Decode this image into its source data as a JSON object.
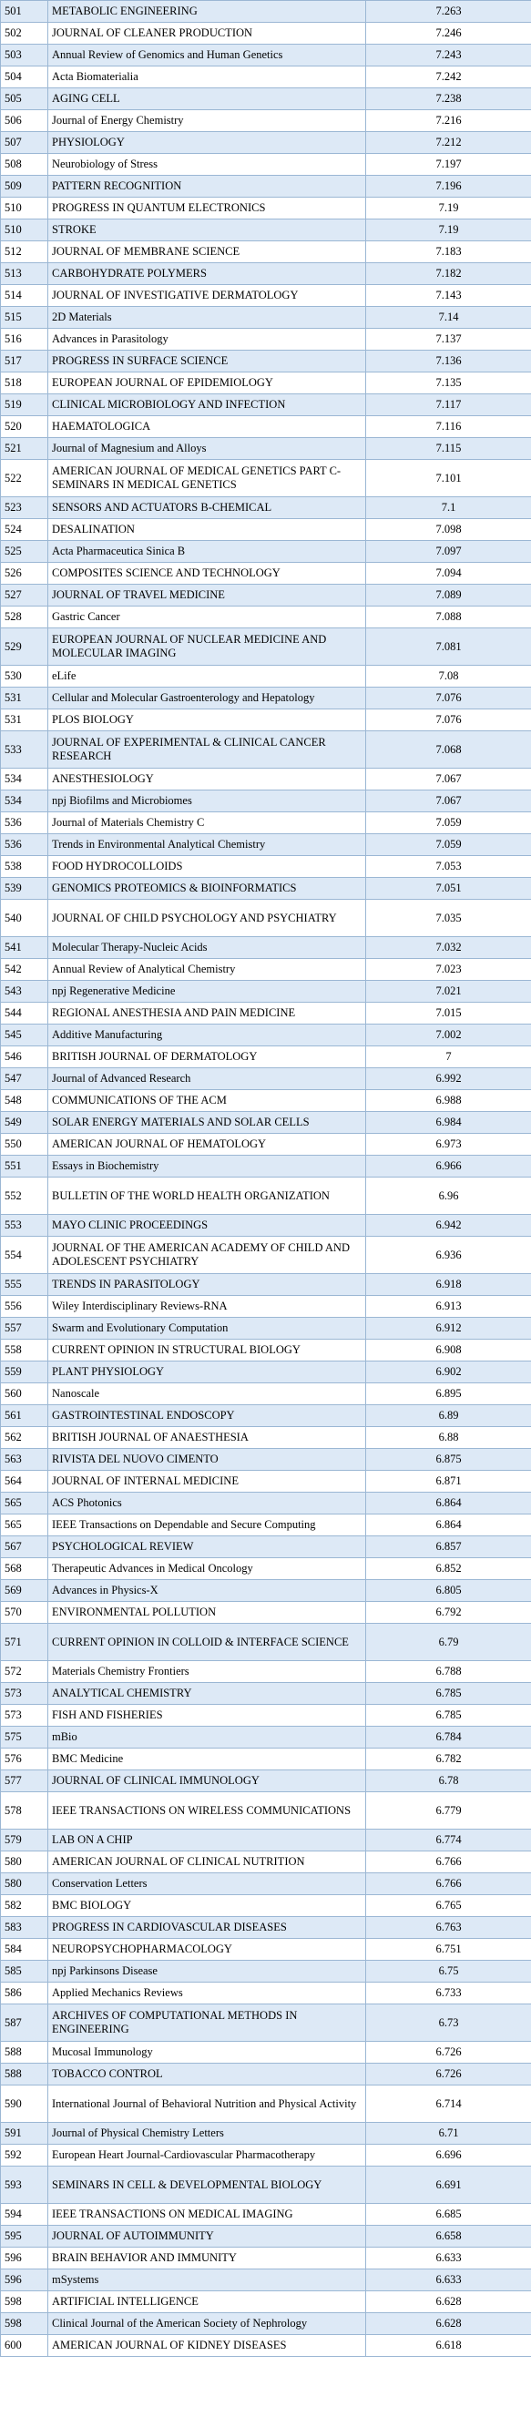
{
  "table": {
    "rows": [
      {
        "rank": "501",
        "name": "METABOLIC ENGINEERING",
        "value": "7.263",
        "shaded": true,
        "lines": 1
      },
      {
        "rank": "502",
        "name": "JOURNAL OF CLEANER PRODUCTION",
        "value": "7.246",
        "shaded": false,
        "lines": 1
      },
      {
        "rank": "503",
        "name": "Annual Review of Genomics and Human Genetics",
        "value": "7.243",
        "shaded": true,
        "lines": 1
      },
      {
        "rank": "504",
        "name": "Acta Biomaterialia",
        "value": "7.242",
        "shaded": false,
        "lines": 1
      },
      {
        "rank": "505",
        "name": "AGING CELL",
        "value": "7.238",
        "shaded": true,
        "lines": 1
      },
      {
        "rank": "506",
        "name": "Journal of Energy Chemistry",
        "value": "7.216",
        "shaded": false,
        "lines": 1
      },
      {
        "rank": "507",
        "name": "PHYSIOLOGY",
        "value": "7.212",
        "shaded": true,
        "lines": 1
      },
      {
        "rank": "508",
        "name": "Neurobiology of Stress",
        "value": "7.197",
        "shaded": false,
        "lines": 1
      },
      {
        "rank": "509",
        "name": "PATTERN RECOGNITION",
        "value": "7.196",
        "shaded": true,
        "lines": 1
      },
      {
        "rank": "510",
        "name": "PROGRESS IN QUANTUM ELECTRONICS",
        "value": "7.19",
        "shaded": false,
        "lines": 1
      },
      {
        "rank": "510",
        "name": "STROKE",
        "value": "7.19",
        "shaded": true,
        "lines": 1
      },
      {
        "rank": "512",
        "name": "JOURNAL OF MEMBRANE SCIENCE",
        "value": "7.183",
        "shaded": false,
        "lines": 1
      },
      {
        "rank": "513",
        "name": "CARBOHYDRATE POLYMERS",
        "value": "7.182",
        "shaded": true,
        "lines": 1
      },
      {
        "rank": "514",
        "name": "JOURNAL OF INVESTIGATIVE DERMATOLOGY",
        "value": "7.143",
        "shaded": false,
        "lines": 1
      },
      {
        "rank": "515",
        "name": "2D Materials",
        "value": "7.14",
        "shaded": true,
        "lines": 1
      },
      {
        "rank": "516",
        "name": "Advances in Parasitology",
        "value": "7.137",
        "shaded": false,
        "lines": 1
      },
      {
        "rank": "517",
        "name": "PROGRESS IN SURFACE SCIENCE",
        "value": "7.136",
        "shaded": true,
        "lines": 1
      },
      {
        "rank": "518",
        "name": "EUROPEAN JOURNAL OF EPIDEMIOLOGY",
        "value": "7.135",
        "shaded": false,
        "lines": 1
      },
      {
        "rank": "519",
        "name": "CLINICAL MICROBIOLOGY AND INFECTION",
        "value": "7.117",
        "shaded": true,
        "lines": 1
      },
      {
        "rank": "520",
        "name": "HAEMATOLOGICA",
        "value": "7.116",
        "shaded": false,
        "lines": 1
      },
      {
        "rank": "521",
        "name": "Journal of Magnesium and Alloys",
        "value": "7.115",
        "shaded": true,
        "lines": 1
      },
      {
        "rank": "522",
        "name": "AMERICAN JOURNAL OF MEDICAL GENETICS PART C-SEMINARS IN MEDICAL GENETICS",
        "value": "7.101",
        "shaded": false,
        "lines": 2
      },
      {
        "rank": "523",
        "name": "SENSORS AND ACTUATORS B-CHEMICAL",
        "value": "7.1",
        "shaded": true,
        "lines": 1
      },
      {
        "rank": "524",
        "name": "DESALINATION",
        "value": "7.098",
        "shaded": false,
        "lines": 1
      },
      {
        "rank": "525",
        "name": "Acta Pharmaceutica Sinica B",
        "value": "7.097",
        "shaded": true,
        "lines": 1
      },
      {
        "rank": "526",
        "name": "COMPOSITES SCIENCE AND TECHNOLOGY",
        "value": "7.094",
        "shaded": false,
        "lines": 1
      },
      {
        "rank": "527",
        "name": "JOURNAL OF TRAVEL MEDICINE",
        "value": "7.089",
        "shaded": true,
        "lines": 1
      },
      {
        "rank": "528",
        "name": "Gastric Cancer",
        "value": "7.088",
        "shaded": false,
        "lines": 1
      },
      {
        "rank": "529",
        "name": "EUROPEAN JOURNAL OF NUCLEAR MEDICINE AND MOLECULAR IMAGING",
        "value": "7.081",
        "shaded": true,
        "lines": 2
      },
      {
        "rank": "530",
        "name": "eLife",
        "value": "7.08",
        "shaded": false,
        "lines": 1
      },
      {
        "rank": "531",
        "name": "Cellular and Molecular Gastroenterology and Hepatology",
        "value": "7.076",
        "shaded": true,
        "lines": 1
      },
      {
        "rank": "531",
        "name": "PLOS BIOLOGY",
        "value": "7.076",
        "shaded": false,
        "lines": 1
      },
      {
        "rank": "533",
        "name": "JOURNAL OF EXPERIMENTAL & CLINICAL CANCER RESEARCH",
        "value": "7.068",
        "shaded": true,
        "lines": 2
      },
      {
        "rank": "534",
        "name": "ANESTHESIOLOGY",
        "value": "7.067",
        "shaded": false,
        "lines": 1
      },
      {
        "rank": "534",
        "name": "npj Biofilms and Microbiomes",
        "value": "7.067",
        "shaded": true,
        "lines": 1
      },
      {
        "rank": "536",
        "name": "Journal of Materials Chemistry C",
        "value": "7.059",
        "shaded": false,
        "lines": 1
      },
      {
        "rank": "536",
        "name": "Trends in Environmental Analytical Chemistry",
        "value": "7.059",
        "shaded": true,
        "lines": 1
      },
      {
        "rank": "538",
        "name": "FOOD HYDROCOLLOIDS",
        "value": "7.053",
        "shaded": false,
        "lines": 1
      },
      {
        "rank": "539",
        "name": "GENOMICS PROTEOMICS & BIOINFORMATICS",
        "value": "7.051",
        "shaded": true,
        "lines": 1
      },
      {
        "rank": "540",
        "name": "JOURNAL OF CHILD PSYCHOLOGY AND PSYCHIATRY",
        "value": "7.035",
        "shaded": false,
        "lines": 2
      },
      {
        "rank": "541",
        "name": "Molecular Therapy-Nucleic Acids",
        "value": "7.032",
        "shaded": true,
        "lines": 1
      },
      {
        "rank": "542",
        "name": "Annual Review of Analytical Chemistry",
        "value": "7.023",
        "shaded": false,
        "lines": 1
      },
      {
        "rank": "543",
        "name": "npj Regenerative Medicine",
        "value": "7.021",
        "shaded": true,
        "lines": 1
      },
      {
        "rank": "544",
        "name": "REGIONAL ANESTHESIA AND PAIN MEDICINE",
        "value": "7.015",
        "shaded": false,
        "lines": 1
      },
      {
        "rank": "545",
        "name": "Additive Manufacturing",
        "value": "7.002",
        "shaded": true,
        "lines": 1
      },
      {
        "rank": "546",
        "name": "BRITISH JOURNAL OF DERMATOLOGY",
        "value": "7",
        "shaded": false,
        "lines": 1
      },
      {
        "rank": "547",
        "name": "Journal of Advanced Research",
        "value": "6.992",
        "shaded": true,
        "lines": 1
      },
      {
        "rank": "548",
        "name": "COMMUNICATIONS OF THE ACM",
        "value": "6.988",
        "shaded": false,
        "lines": 1
      },
      {
        "rank": "549",
        "name": "SOLAR ENERGY MATERIALS AND SOLAR CELLS",
        "value": "6.984",
        "shaded": true,
        "lines": 1
      },
      {
        "rank": "550",
        "name": "AMERICAN JOURNAL OF HEMATOLOGY",
        "value": "6.973",
        "shaded": false,
        "lines": 1
      },
      {
        "rank": "551",
        "name": "Essays in Biochemistry",
        "value": "6.966",
        "shaded": true,
        "lines": 1
      },
      {
        "rank": "552",
        "name": "BULLETIN OF THE WORLD HEALTH ORGANIZATION",
        "value": "6.96",
        "shaded": false,
        "lines": 2
      },
      {
        "rank": "553",
        "name": "MAYO CLINIC PROCEEDINGS",
        "value": "6.942",
        "shaded": true,
        "lines": 1
      },
      {
        "rank": "554",
        "name": "JOURNAL OF THE AMERICAN ACADEMY OF CHILD AND ADOLESCENT PSYCHIATRY",
        "value": "6.936",
        "shaded": false,
        "lines": 2
      },
      {
        "rank": "555",
        "name": "TRENDS IN PARASITOLOGY",
        "value": "6.918",
        "shaded": true,
        "lines": 1
      },
      {
        "rank": "556",
        "name": "Wiley Interdisciplinary Reviews-RNA",
        "value": "6.913",
        "shaded": false,
        "lines": 1
      },
      {
        "rank": "557",
        "name": "Swarm and Evolutionary Computation",
        "value": "6.912",
        "shaded": true,
        "lines": 1
      },
      {
        "rank": "558",
        "name": "CURRENT OPINION IN STRUCTURAL BIOLOGY",
        "value": "6.908",
        "shaded": false,
        "lines": 1
      },
      {
        "rank": "559",
        "name": "PLANT PHYSIOLOGY",
        "value": "6.902",
        "shaded": true,
        "lines": 1
      },
      {
        "rank": "560",
        "name": "Nanoscale",
        "value": "6.895",
        "shaded": false,
        "lines": 1
      },
      {
        "rank": "561",
        "name": "GASTROINTESTINAL ENDOSCOPY",
        "value": "6.89",
        "shaded": true,
        "lines": 1
      },
      {
        "rank": "562",
        "name": "BRITISH JOURNAL OF ANAESTHESIA",
        "value": "6.88",
        "shaded": false,
        "lines": 1
      },
      {
        "rank": "563",
        "name": "RIVISTA DEL NUOVO CIMENTO",
        "value": "6.875",
        "shaded": true,
        "lines": 1
      },
      {
        "rank": "564",
        "name": "JOURNAL OF INTERNAL MEDICINE",
        "value": "6.871",
        "shaded": false,
        "lines": 1
      },
      {
        "rank": "565",
        "name": "ACS Photonics",
        "value": "6.864",
        "shaded": true,
        "lines": 1
      },
      {
        "rank": "565",
        "name": "IEEE Transactions on Dependable and Secure Computing",
        "value": "6.864",
        "shaded": false,
        "lines": 1
      },
      {
        "rank": "567",
        "name": "PSYCHOLOGICAL REVIEW",
        "value": "6.857",
        "shaded": true,
        "lines": 1
      },
      {
        "rank": "568",
        "name": "Therapeutic Advances in Medical Oncology",
        "value": "6.852",
        "shaded": false,
        "lines": 1
      },
      {
        "rank": "569",
        "name": "Advances in Physics-X",
        "value": "6.805",
        "shaded": true,
        "lines": 1
      },
      {
        "rank": "570",
        "name": "ENVIRONMENTAL POLLUTION",
        "value": "6.792",
        "shaded": false,
        "lines": 1
      },
      {
        "rank": "571",
        "name": "CURRENT OPINION IN COLLOID & INTERFACE SCIENCE",
        "value": "6.79",
        "shaded": true,
        "lines": 2
      },
      {
        "rank": "572",
        "name": "Materials Chemistry Frontiers",
        "value": "6.788",
        "shaded": false,
        "lines": 1
      },
      {
        "rank": "573",
        "name": "ANALYTICAL CHEMISTRY",
        "value": "6.785",
        "shaded": true,
        "lines": 1
      },
      {
        "rank": "573",
        "name": "FISH AND FISHERIES",
        "value": "6.785",
        "shaded": false,
        "lines": 1
      },
      {
        "rank": "575",
        "name": "mBio",
        "value": "6.784",
        "shaded": true,
        "lines": 1
      },
      {
        "rank": "576",
        "name": "BMC Medicine",
        "value": "6.782",
        "shaded": false,
        "lines": 1
      },
      {
        "rank": "577",
        "name": "JOURNAL OF CLINICAL IMMUNOLOGY",
        "value": "6.78",
        "shaded": true,
        "lines": 1
      },
      {
        "rank": "578",
        "name": "IEEE TRANSACTIONS ON WIRELESS COMMUNICATIONS",
        "value": "6.779",
        "shaded": false,
        "lines": 2
      },
      {
        "rank": "579",
        "name": "LAB ON A CHIP",
        "value": "6.774",
        "shaded": true,
        "lines": 1
      },
      {
        "rank": "580",
        "name": "AMERICAN JOURNAL OF CLINICAL NUTRITION",
        "value": "6.766",
        "shaded": false,
        "lines": 1
      },
      {
        "rank": "580",
        "name": "Conservation Letters",
        "value": "6.766",
        "shaded": true,
        "lines": 1
      },
      {
        "rank": "582",
        "name": "BMC BIOLOGY",
        "value": "6.765",
        "shaded": false,
        "lines": 1
      },
      {
        "rank": "583",
        "name": "PROGRESS IN CARDIOVASCULAR DISEASES",
        "value": "6.763",
        "shaded": true,
        "lines": 1
      },
      {
        "rank": "584",
        "name": "NEUROPSYCHOPHARMACOLOGY",
        "value": "6.751",
        "shaded": false,
        "lines": 1
      },
      {
        "rank": "585",
        "name": "npj Parkinsons Disease",
        "value": "6.75",
        "shaded": true,
        "lines": 1
      },
      {
        "rank": "586",
        "name": "Applied Mechanics Reviews",
        "value": "6.733",
        "shaded": false,
        "lines": 1
      },
      {
        "rank": "587",
        "name": "ARCHIVES OF COMPUTATIONAL METHODS IN ENGINEERING",
        "value": "6.73",
        "shaded": true,
        "lines": 2
      },
      {
        "rank": "588",
        "name": "Mucosal Immunology",
        "value": "6.726",
        "shaded": false,
        "lines": 1
      },
      {
        "rank": "588",
        "name": "TOBACCO CONTROL",
        "value": "6.726",
        "shaded": true,
        "lines": 1
      },
      {
        "rank": "590",
        "name": "International Journal of Behavioral Nutrition and Physical Activity",
        "value": "6.714",
        "shaded": false,
        "lines": 2
      },
      {
        "rank": "591",
        "name": "Journal of Physical Chemistry Letters",
        "value": "6.71",
        "shaded": true,
        "lines": 1
      },
      {
        "rank": "592",
        "name": "European Heart Journal-Cardiovascular Pharmacotherapy",
        "value": "6.696",
        "shaded": false,
        "lines": 1
      },
      {
        "rank": "593",
        "name": "SEMINARS IN CELL & DEVELOPMENTAL BIOLOGY",
        "value": "6.691",
        "shaded": true,
        "lines": 2
      },
      {
        "rank": "594",
        "name": "IEEE TRANSACTIONS ON MEDICAL IMAGING",
        "value": "6.685",
        "shaded": false,
        "lines": 1
      },
      {
        "rank": "595",
        "name": "JOURNAL OF AUTOIMMUNITY",
        "value": "6.658",
        "shaded": true,
        "lines": 1
      },
      {
        "rank": "596",
        "name": "BRAIN BEHAVIOR AND IMMUNITY",
        "value": "6.633",
        "shaded": false,
        "lines": 1
      },
      {
        "rank": "596",
        "name": "mSystems",
        "value": "6.633",
        "shaded": true,
        "lines": 1
      },
      {
        "rank": "598",
        "name": "ARTIFICIAL INTELLIGENCE",
        "value": "6.628",
        "shaded": false,
        "lines": 1
      },
      {
        "rank": "598",
        "name": "Clinical Journal of the American Society of Nephrology",
        "value": "6.628",
        "shaded": true,
        "lines": 1
      },
      {
        "rank": "600",
        "name": "AMERICAN JOURNAL OF KIDNEY DISEASES",
        "value": "6.618",
        "shaded": false,
        "lines": 1
      }
    ]
  }
}
